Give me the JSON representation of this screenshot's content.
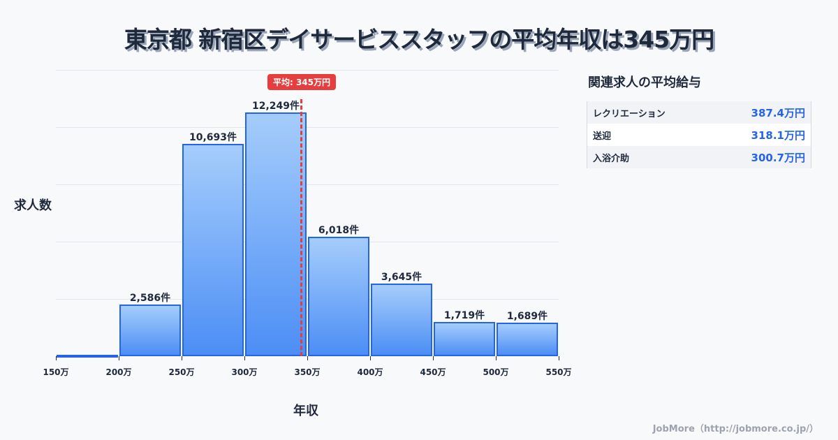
{
  "title": "東京都 新宿区デイサービススタッフの平均年収は345万円",
  "chart_data": {
    "type": "bar",
    "title": "東京都 新宿区デイサービススタッフの平均年収は345万円",
    "xlabel": "年収",
    "ylabel": "求人数",
    "bin_edges": [
      "150万",
      "200万",
      "250万",
      "300万",
      "350万",
      "400万",
      "450万",
      "500万",
      "550万"
    ],
    "categories": [
      "150-200万",
      "200-250万",
      "250-300万",
      "300-350万",
      "350-400万",
      "400-450万",
      "450-500万",
      "500-550万"
    ],
    "values": [
      0,
      2586,
      10693,
      12249,
      6018,
      3645,
      1719,
      1689
    ],
    "labels": [
      "",
      "2,586件",
      "10,693件",
      "12,249件",
      "6,018件",
      "3,645件",
      "1,719件",
      "1,689件"
    ],
    "ylim": [
      0,
      14400
    ],
    "grid": true,
    "annotation": {
      "label": "平均: 345万円",
      "x": 345
    }
  },
  "axis": {
    "x_label": "年収",
    "y_label": "求人数"
  },
  "average_badge": "平均: 345万円",
  "related": {
    "title": "関連求人の平均給与",
    "items": [
      {
        "name": "レクリエーション",
        "value": "387.4万円"
      },
      {
        "name": "送迎",
        "value": "318.1万円"
      },
      {
        "name": "入浴介助",
        "value": "300.7万円"
      }
    ]
  },
  "footer": "JobMore（http://jobmore.co.jp/）",
  "colors": {
    "bar": "#4c8ef5",
    "bar_border": "#2563eb",
    "average": "#e53e3e",
    "value": "#2563eb"
  }
}
